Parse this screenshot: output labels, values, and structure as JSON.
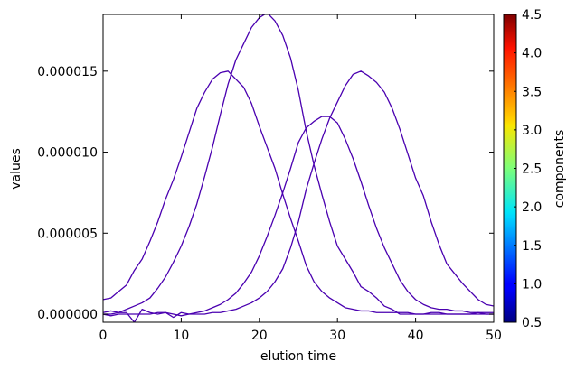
{
  "chart_data": {
    "type": "line",
    "xlabel": "elution time",
    "ylabel": "values",
    "xlim": [
      0,
      50
    ],
    "ylim": [
      -5e-07,
      1.85e-05
    ],
    "xticks": [
      0,
      10,
      20,
      30,
      40,
      50
    ],
    "xtick_labels": [
      "0",
      "10",
      "20",
      "30",
      "40",
      "50"
    ],
    "yticks": [
      0,
      5e-06,
      1e-05,
      1.5e-05
    ],
    "ytick_labels": [
      "0.000000",
      "0.000005",
      "0.000010",
      "0.000015"
    ],
    "grid": false,
    "line_color": "#4a00b0",
    "colorbar": {
      "label": "components",
      "range": [
        0.5,
        4.5
      ],
      "ticks": [
        "0.5",
        "1.0",
        "1.5",
        "2.0",
        "2.5",
        "3.0",
        "3.5",
        "4.0",
        "4.5"
      ],
      "colormap": "jet"
    },
    "series": [
      {
        "x": [
          0,
          1,
          2,
          3,
          4,
          5,
          6,
          7,
          8,
          9,
          10,
          11,
          12,
          13,
          14,
          15,
          16,
          17,
          18,
          19,
          20,
          21,
          22,
          23,
          24,
          25,
          26,
          27,
          28,
          29,
          30,
          31,
          32,
          33,
          34,
          35,
          36,
          37,
          38,
          39,
          40,
          41,
          42,
          43,
          44,
          45,
          46,
          47,
          48,
          49,
          50
        ],
        "y": [
          9e-07,
          1e-06,
          1.4e-06,
          1.8e-06,
          2.7e-06,
          3.4e-06,
          4.5e-06,
          5.7e-06,
          7.1e-06,
          8.3e-06,
          9.7e-06,
          1.12e-05,
          1.27e-05,
          1.37e-05,
          1.45e-05,
          1.49e-05,
          1.5e-05,
          1.45e-05,
          1.4e-05,
          1.3e-05,
          1.16e-05,
          1.03e-05,
          9e-06,
          7.4e-06,
          5.9e-06,
          4.5e-06,
          3e-06,
          2e-06,
          1.4e-06,
          1e-06,
          7e-07,
          4e-07,
          3e-07,
          2e-07,
          2e-07,
          1e-07,
          1e-07,
          1e-07,
          1e-07,
          1e-07,
          0,
          0,
          0,
          0,
          0,
          0,
          0,
          0,
          0,
          0,
          0
        ]
      },
      {
        "x": [
          0,
          1,
          2,
          3,
          4,
          5,
          6,
          7,
          8,
          9,
          10,
          11,
          12,
          13,
          14,
          15,
          16,
          17,
          18,
          19,
          20,
          21,
          22,
          23,
          24,
          25,
          26,
          27,
          28,
          29,
          30,
          31,
          32,
          33,
          34,
          35,
          36,
          37,
          38,
          39,
          40,
          41,
          42,
          43,
          44,
          45,
          46,
          47,
          48,
          49,
          50
        ],
        "y": [
          0,
          0,
          1e-07,
          3e-07,
          5e-07,
          7e-07,
          1e-06,
          1.6e-06,
          2.3e-06,
          3.2e-06,
          4.2e-06,
          5.4e-06,
          6.8e-06,
          8.5e-06,
          1.03e-05,
          1.23e-05,
          1.42e-05,
          1.57e-05,
          1.67e-05,
          1.77e-05,
          1.83e-05,
          1.86e-05,
          1.81e-05,
          1.72e-05,
          1.58e-05,
          1.38e-05,
          1.13e-05,
          9.2e-06,
          7.4e-06,
          5.7e-06,
          4.2e-06,
          3.4e-06,
          2.6e-06,
          1.7e-06,
          1.4e-06,
          1e-06,
          5e-07,
          3e-07,
          0,
          0,
          0,
          0,
          1e-07,
          1e-07,
          0,
          0,
          0,
          0,
          1e-07,
          0,
          0
        ]
      },
      {
        "x": [
          0,
          1,
          2,
          3,
          4,
          5,
          6,
          7,
          8,
          9,
          10,
          11,
          12,
          13,
          14,
          15,
          16,
          17,
          18,
          19,
          20,
          21,
          22,
          23,
          24,
          25,
          26,
          27,
          28,
          29,
          30,
          31,
          32,
          33,
          34,
          35,
          36,
          37,
          38,
          39,
          40,
          41,
          42,
          43,
          44,
          45,
          46,
          47,
          48,
          49,
          50
        ],
        "y": [
          1e-07,
          2e-07,
          1e-07,
          1e-07,
          -5e-07,
          3e-07,
          1e-07,
          0,
          1e-07,
          -2e-07,
          1e-07,
          0,
          1e-07,
          2e-07,
          4e-07,
          6e-07,
          9e-07,
          1.3e-06,
          1.9e-06,
          2.6e-06,
          3.6e-06,
          4.8e-06,
          6.1e-06,
          7.5e-06,
          9e-06,
          1.06e-05,
          1.15e-05,
          1.19e-05,
          1.22e-05,
          1.22e-05,
          1.18e-05,
          1.08e-05,
          9.6e-06,
          8.2e-06,
          6.7e-06,
          5.3e-06,
          4.1e-06,
          3.1e-06,
          2.1e-06,
          1.4e-06,
          9e-07,
          6e-07,
          4e-07,
          3e-07,
          3e-07,
          2e-07,
          2e-07,
          1e-07,
          1e-07,
          1e-07,
          1e-07
        ]
      },
      {
        "x": [
          0,
          1,
          2,
          3,
          4,
          5,
          6,
          7,
          8,
          9,
          10,
          11,
          12,
          13,
          14,
          15,
          16,
          17,
          18,
          19,
          20,
          21,
          22,
          23,
          24,
          25,
          26,
          27,
          28,
          29,
          30,
          31,
          32,
          33,
          34,
          35,
          36,
          37,
          38,
          39,
          40,
          41,
          42,
          43,
          44,
          45,
          46,
          47,
          48,
          49,
          50
        ],
        "y": [
          0,
          -1e-07,
          0,
          0,
          0,
          0,
          0,
          1e-07,
          1e-07,
          0,
          -1e-07,
          0,
          0,
          0,
          1e-07,
          1e-07,
          2e-07,
          3e-07,
          5e-07,
          7e-07,
          1e-06,
          1.4e-06,
          2e-06,
          2.8e-06,
          4.1e-06,
          5.7e-06,
          7.7e-06,
          9.3e-06,
          1.08e-05,
          1.21e-05,
          1.31e-05,
          1.41e-05,
          1.48e-05,
          1.5e-05,
          1.47e-05,
          1.43e-05,
          1.37e-05,
          1.27e-05,
          1.14e-05,
          9.9e-06,
          8.4e-06,
          7.3e-06,
          5.7e-06,
          4.3e-06,
          3.1e-06,
          2.5e-06,
          1.9e-06,
          1.4e-06,
          9e-07,
          6e-07,
          5e-07
        ]
      }
    ]
  }
}
